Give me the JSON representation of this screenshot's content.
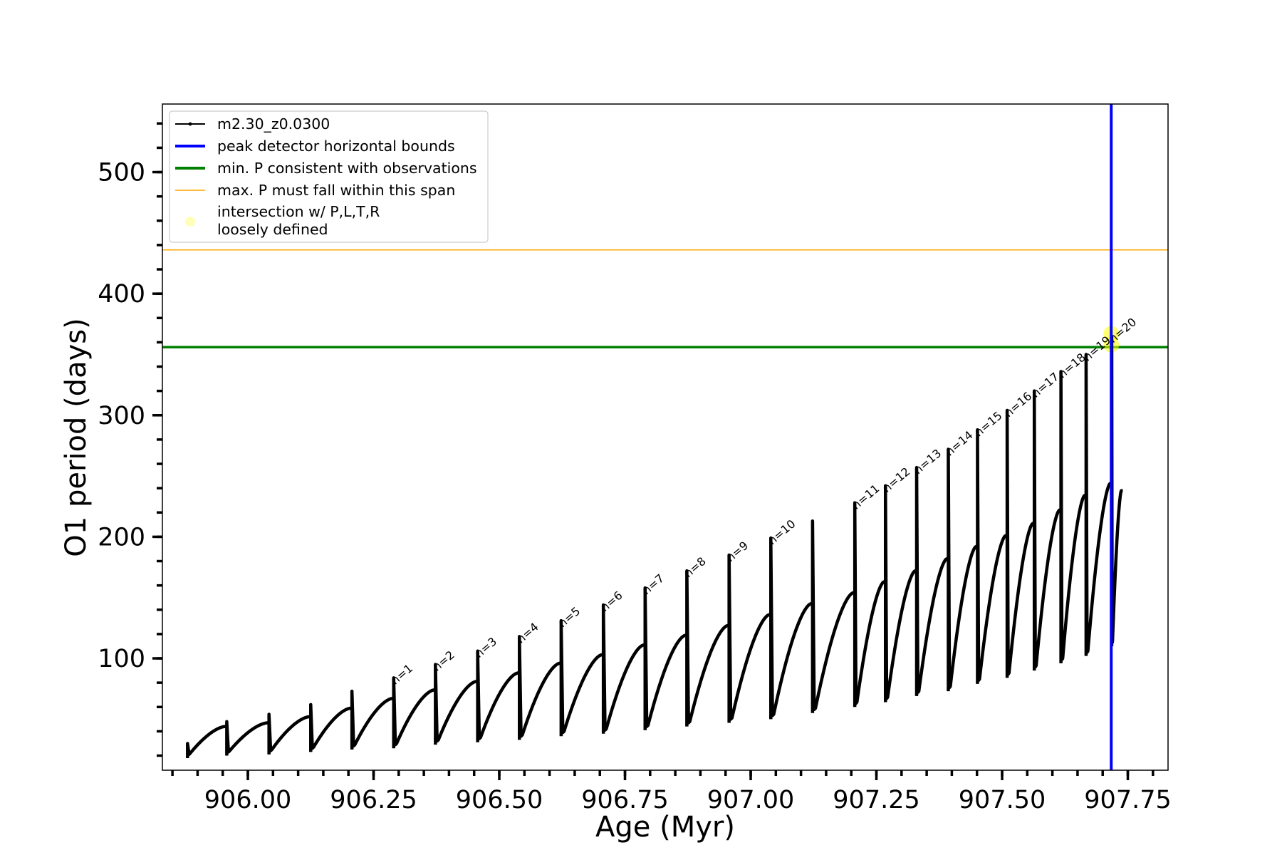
{
  "chart_data": {
    "type": "line",
    "xlabel": "Age (Myr)",
    "ylabel": "O1 period (days)",
    "xlim": [
      905.83,
      907.83
    ],
    "ylim": [
      8,
      556
    ],
    "x_ticks": [
      906.0,
      906.25,
      906.5,
      906.75,
      907.0,
      907.25,
      907.5,
      907.75
    ],
    "x_tick_labels": [
      "906.00",
      "906.25",
      "906.50",
      "906.75",
      "907.00",
      "907.25",
      "907.50",
      "907.75"
    ],
    "x_minor_step": 0.05,
    "y_ticks": [
      100,
      200,
      300,
      400,
      500
    ],
    "y_tick_labels": [
      "100",
      "200",
      "300",
      "400",
      "500"
    ],
    "y_minor_step": 20,
    "grid": false,
    "legend_position": "top-left",
    "legend": [
      {
        "label": "m2.30_z0.0300",
        "style": "line-marker",
        "color": "#000000"
      },
      {
        "label": "peak detector horizontal bounds",
        "style": "line",
        "color": "#0000ff"
      },
      {
        "label": "min. P consistent with observations",
        "style": "line",
        "color": "#008000"
      },
      {
        "label": "max. P must fall within this span",
        "style": "thin-line",
        "color": "#ffa500"
      },
      {
        "label_lines": [
          "intersection w/ P,L,T,R",
          "loosely defined"
        ],
        "style": "dot",
        "color": "#ffff99"
      }
    ],
    "series": [
      {
        "name": "m2.30_z0.0300",
        "color": "#000000",
        "cycles": [
          {
            "start": 905.88,
            "end": 905.958,
            "min": 18,
            "max": 44,
            "spike": 30
          },
          {
            "start": 905.958,
            "end": 906.042,
            "min": 20,
            "max": 47,
            "spike": 48
          },
          {
            "start": 906.042,
            "end": 906.125,
            "min": 21,
            "max": 52,
            "spike": 54
          },
          {
            "start": 906.125,
            "end": 906.207,
            "min": 23,
            "max": 59,
            "spike": 62
          },
          {
            "start": 906.207,
            "end": 906.29,
            "min": 25,
            "max": 67,
            "spike": 73
          },
          {
            "start": 906.29,
            "end": 906.373,
            "min": 26,
            "max": 74,
            "spike": 84,
            "label": "n=1"
          },
          {
            "start": 906.373,
            "end": 906.457,
            "min": 29,
            "max": 81,
            "spike": 95,
            "label": "n=2"
          },
          {
            "start": 906.457,
            "end": 906.54,
            "min": 31,
            "max": 88,
            "spike": 106,
            "label": "n=3"
          },
          {
            "start": 906.54,
            "end": 906.623,
            "min": 33,
            "max": 96,
            "spike": 118,
            "label": "n=4"
          },
          {
            "start": 906.623,
            "end": 906.707,
            "min": 36,
            "max": 103,
            "spike": 131,
            "label": "n=5"
          },
          {
            "start": 906.707,
            "end": 906.79,
            "min": 38,
            "max": 111,
            "spike": 144,
            "label": "n=6"
          },
          {
            "start": 906.79,
            "end": 906.873,
            "min": 41,
            "max": 119,
            "spike": 158,
            "label": "n=7"
          },
          {
            "start": 906.873,
            "end": 906.957,
            "min": 44,
            "max": 127,
            "spike": 172,
            "label": "n=8"
          },
          {
            "start": 906.957,
            "end": 907.04,
            "min": 47,
            "max": 136,
            "spike": 185,
            "label": "n=9"
          },
          {
            "start": 907.04,
            "end": 907.123,
            "min": 50,
            "max": 145,
            "spike": 199,
            "label": "n=10"
          },
          {
            "start": 907.123,
            "end": 907.207,
            "min": 55,
            "max": 154,
            "spike": 213
          },
          {
            "start": 907.207,
            "end": 907.268,
            "min": 60,
            "max": 163,
            "spike": 228,
            "label": "n=11"
          },
          {
            "start": 907.268,
            "end": 907.33,
            "min": 64,
            "max": 172,
            "spike": 242,
            "label": "n=12"
          },
          {
            "start": 907.33,
            "end": 907.393,
            "min": 69,
            "max": 182,
            "spike": 257,
            "label": "n=13"
          },
          {
            "start": 907.393,
            "end": 907.451,
            "min": 73,
            "max": 192,
            "spike": 272,
            "label": "n=14"
          },
          {
            "start": 907.451,
            "end": 907.51,
            "min": 79,
            "max": 201,
            "spike": 288,
            "label": "n=15"
          },
          {
            "start": 907.51,
            "end": 907.564,
            "min": 84,
            "max": 211,
            "spike": 304,
            "label": "n=16"
          },
          {
            "start": 907.564,
            "end": 907.617,
            "min": 90,
            "max": 222,
            "spike": 320,
            "label": "n=17"
          },
          {
            "start": 907.617,
            "end": 907.667,
            "min": 96,
            "max": 234,
            "spike": 336,
            "label": "n=18"
          },
          {
            "start": 907.667,
            "end": 907.718,
            "min": 102,
            "max": 244,
            "spike": 350,
            "label": "n=19"
          },
          {
            "start": 907.718,
            "end": 907.74,
            "min": 110,
            "max": 238,
            "spike": 365,
            "label": "n=20"
          }
        ]
      }
    ],
    "reference_lines": [
      {
        "orientation": "horizontal",
        "y": 356,
        "color": "#008000",
        "role": "min. P consistent with observations"
      },
      {
        "orientation": "horizontal",
        "y": 436,
        "color": "#ffa500",
        "role": "max. P must fall within this span"
      },
      {
        "orientation": "vertical",
        "x": 907.717,
        "color": "#0000ff",
        "role": "peak detector horizontal bounds"
      }
    ],
    "highlight_points": [
      {
        "x": 907.717,
        "y": 358,
        "color": "#ffff00"
      },
      {
        "x": 907.717,
        "y": 367,
        "color": "#ffff00"
      }
    ]
  }
}
